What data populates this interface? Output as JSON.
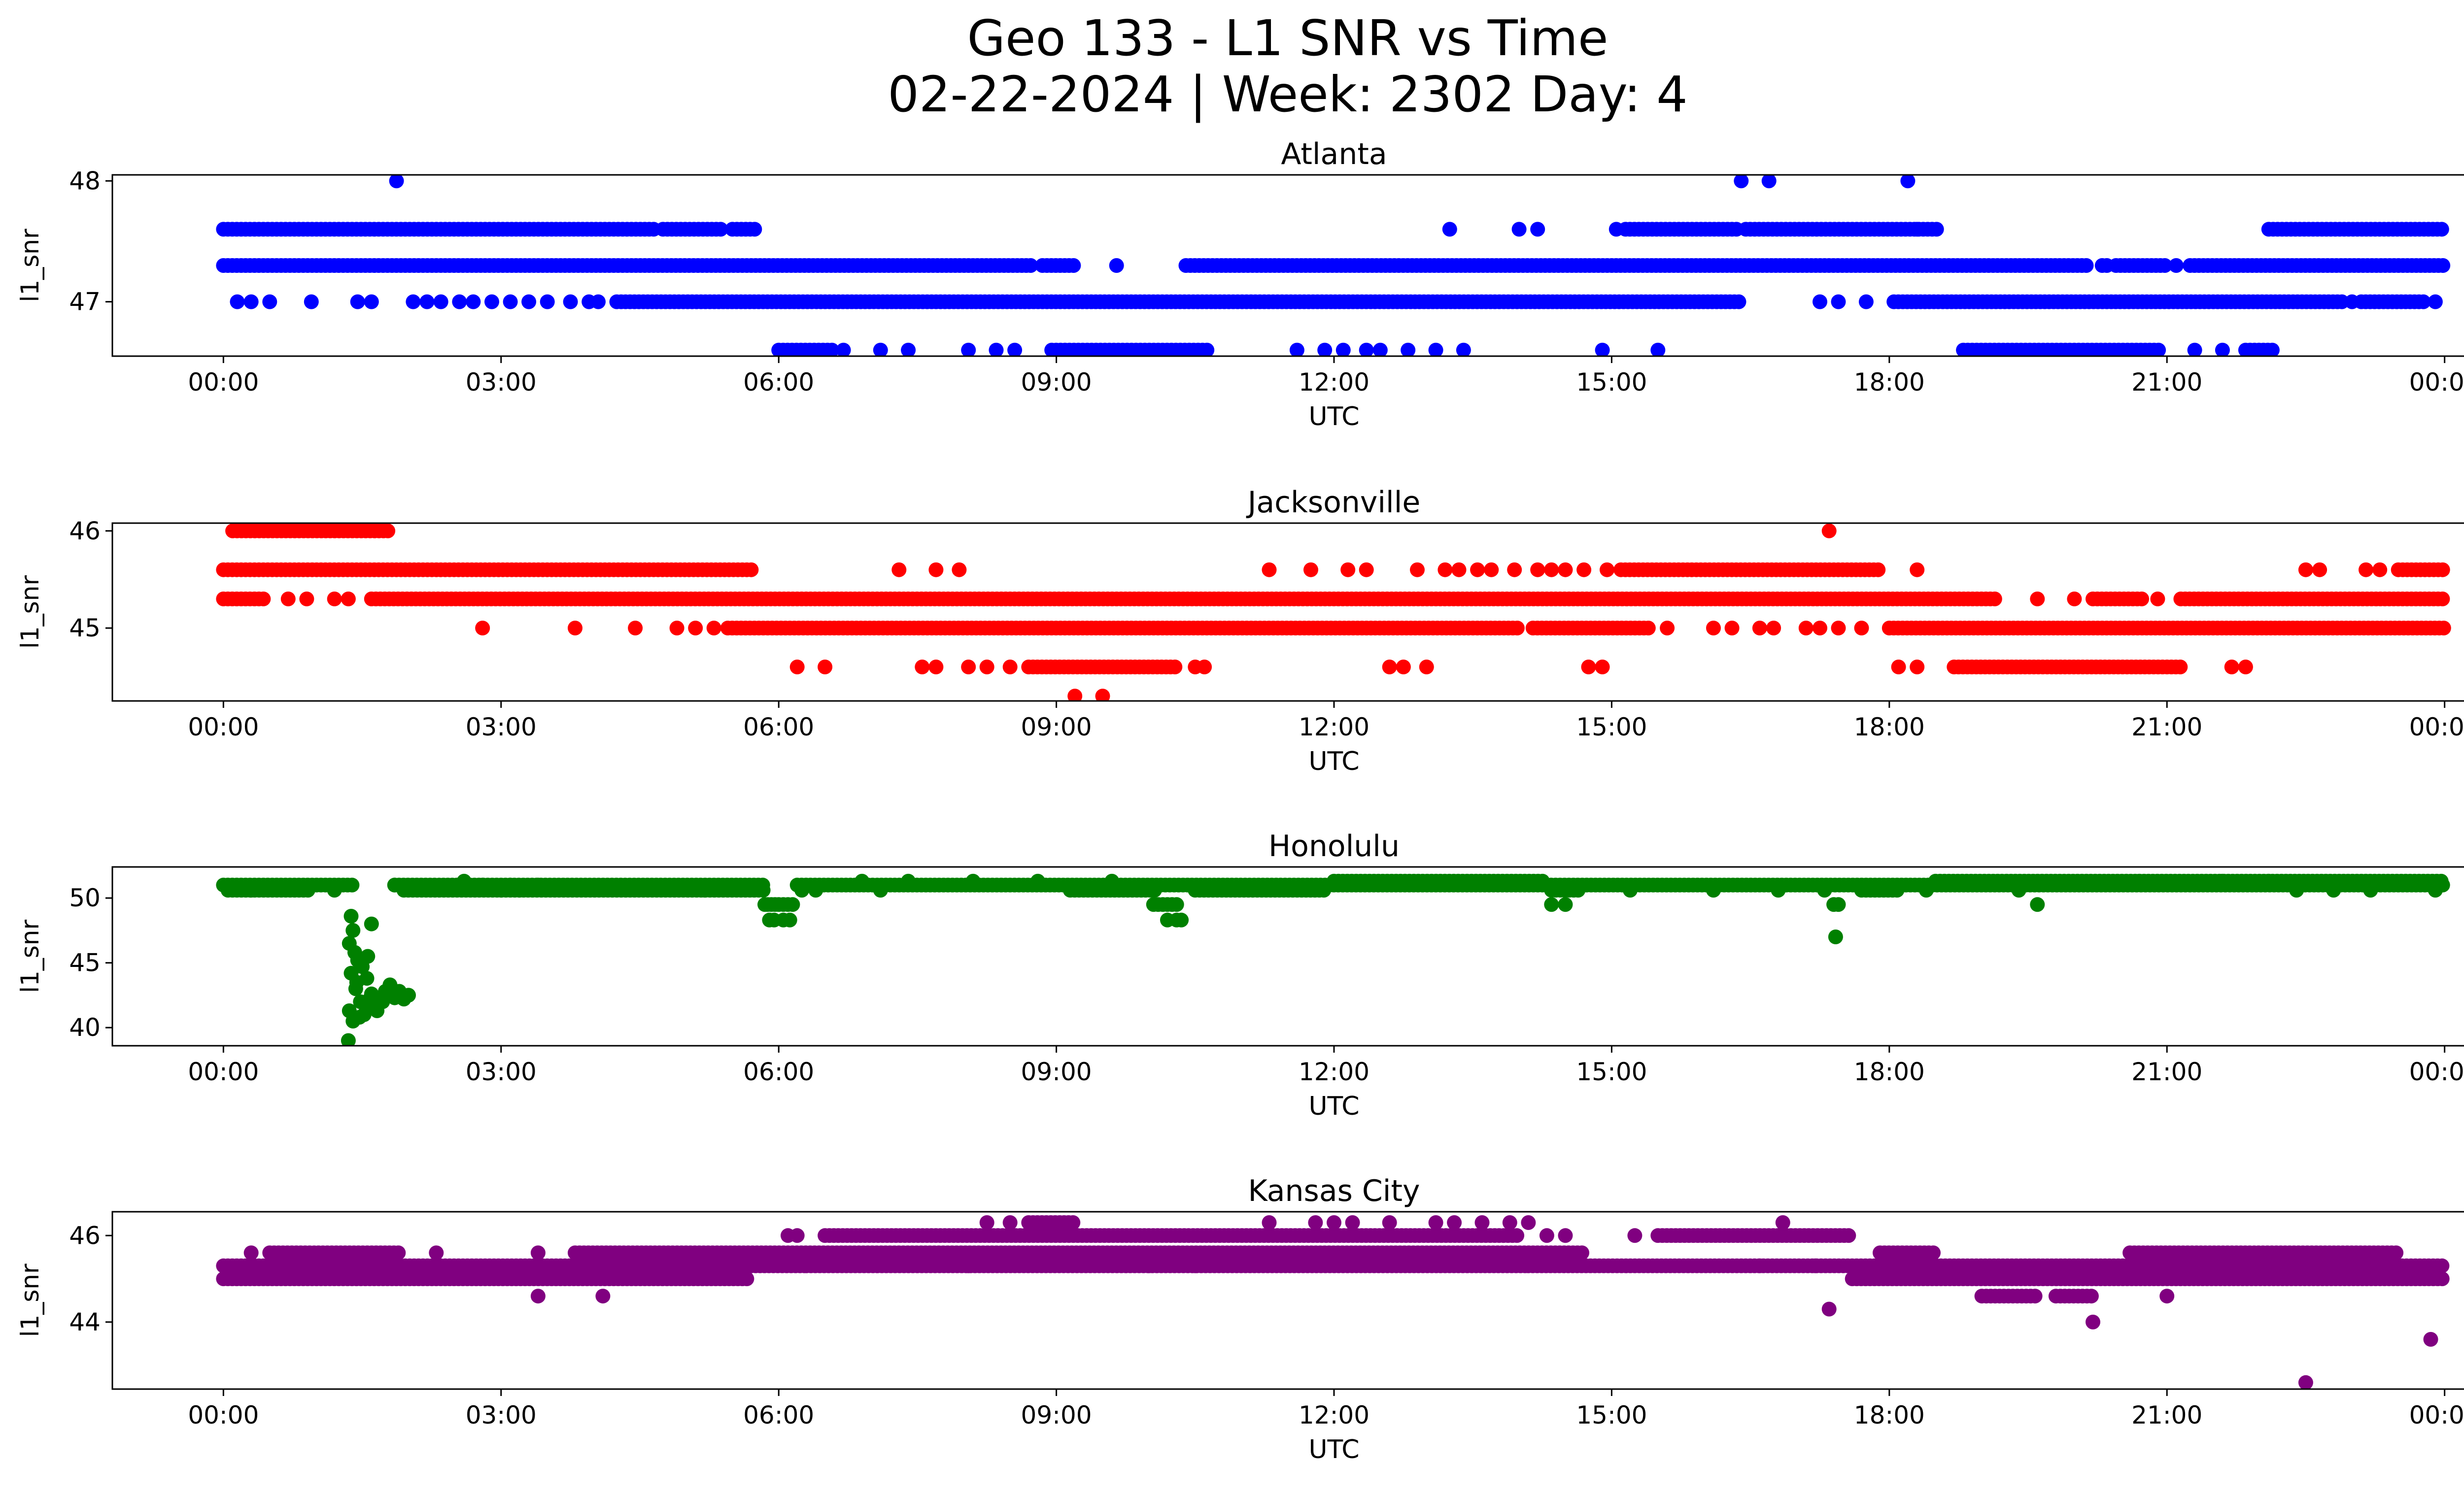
{
  "figure": {
    "title_line1": "Geo 133 - L1 SNR vs Time",
    "title_line2": "02-22-2024 | Week: 2302 Day: 4"
  },
  "chart_data": [
    {
      "type": "scatter",
      "title": "Atlanta",
      "xlabel": "UTC",
      "ylabel": "l1_snr",
      "color": "#0000ff",
      "x_ticks": [
        "00:00",
        "03:00",
        "06:00",
        "09:00",
        "12:00",
        "15:00",
        "18:00",
        "21:00",
        "00:00"
      ],
      "xlim_hours": [
        -1.2,
        25.2
      ],
      "y_ticks": [
        47,
        48
      ],
      "ylim": [
        46.55,
        48.05
      ],
      "series": [
        {
          "y": 47.6,
          "ranges": [
            [
              0.0,
              4.65
            ],
            [
              4.75,
              5.4
            ],
            [
              5.5,
              5.75
            ],
            [
              15.15,
              16.35
            ],
            [
              16.45,
              18.55
            ],
            [
              22.1,
              24.0
            ]
          ],
          "points": [
            13.25,
            14.0,
            14.2,
            15.05,
            18.3
          ]
        },
        {
          "y": 47.3,
          "ranges": [
            [
              0.0,
              8.75
            ],
            [
              8.85,
              9.2
            ],
            [
              10.4,
              20.15
            ],
            [
              20.45,
              21.0
            ],
            [
              21.25,
              24.0
            ]
          ],
          "points": [
            9.65,
            20.3,
            20.35,
            21.1
          ]
        },
        {
          "y": 47.0,
          "ranges": [
            [
              4.25,
              16.4
            ],
            [
              18.05,
              22.9
            ],
            [
              23.1,
              23.8
            ]
          ],
          "points": [
            0.15,
            0.3,
            0.5,
            0.95,
            1.45,
            1.6,
            2.05,
            2.2,
            2.35,
            2.55,
            2.7,
            2.9,
            3.1,
            3.3,
            3.5,
            3.75,
            3.95,
            4.05,
            17.25,
            17.45,
            17.75,
            23.0,
            23.9
          ]
        },
        {
          "y": 46.6,
          "ranges": [
            [
              6.0,
              6.6
            ],
            [
              8.95,
              10.65
            ],
            [
              18.8,
              20.95
            ],
            [
              21.85,
              22.15
            ]
          ],
          "points": [
            6.7,
            7.1,
            7.4,
            8.05,
            8.35,
            8.55,
            11.6,
            11.9,
            12.1,
            12.35,
            12.5,
            12.8,
            13.1,
            13.4,
            14.9,
            15.5,
            21.3,
            21.6
          ]
        },
        {
          "y": 48.0,
          "ranges": [],
          "points": [
            1.87,
            16.4,
            16.7,
            18.2
          ]
        }
      ]
    },
    {
      "type": "scatter",
      "title": "Jacksonville",
      "xlabel": "UTC",
      "ylabel": "l1_snr",
      "color": "#ff0000",
      "x_ticks": [
        "00:00",
        "03:00",
        "06:00",
        "09:00",
        "12:00",
        "15:00",
        "18:00",
        "21:00",
        "00:00"
      ],
      "xlim_hours": [
        -1.2,
        25.2
      ],
      "y_ticks": [
        45,
        46
      ],
      "ylim": [
        44.25,
        46.08
      ],
      "series": [
        {
          "y": 46.0,
          "ranges": [
            [
              0.1,
              1.8
            ]
          ],
          "points": [
            17.35
          ]
        },
        {
          "y": 45.6,
          "ranges": [
            [
              0.0,
              5.75
            ],
            [
              15.1,
              17.9
            ],
            [
              23.5,
              24.0
            ]
          ],
          "points": [
            7.3,
            7.7,
            7.95,
            11.3,
            11.75,
            12.15,
            12.35,
            12.9,
            13.2,
            13.35,
            13.55,
            13.7,
            13.95,
            14.2,
            14.35,
            14.5,
            14.7,
            14.95,
            18.3,
            22.5,
            22.65,
            23.15,
            23.3
          ]
        },
        {
          "y": 45.3,
          "ranges": [
            [
              0.0,
              0.45
            ],
            [
              1.6,
              19.15
            ],
            [
              20.2,
              20.75
            ],
            [
              21.15,
              24.0
            ]
          ],
          "points": [
            0.7,
            0.9,
            1.2,
            1.35,
            19.6,
            20.0,
            20.9
          ]
        },
        {
          "y": 45.0,
          "ranges": [
            [
              5.45,
              14.0
            ],
            [
              14.15,
              15.4
            ],
            [
              18.0,
              24.0
            ]
          ],
          "points": [
            2.8,
            3.8,
            4.45,
            4.9,
            5.1,
            5.3,
            15.6,
            16.1,
            16.3,
            16.6,
            16.75,
            17.1,
            17.25,
            17.45,
            17.7
          ]
        },
        {
          "y": 44.6,
          "ranges": [
            [
              8.7,
              10.3
            ],
            [
              18.7,
              21.15
            ]
          ],
          "points": [
            6.2,
            6.5,
            7.55,
            7.7,
            8.05,
            8.25,
            8.5,
            10.5,
            10.6,
            12.6,
            12.75,
            13.0,
            14.75,
            14.9,
            18.1,
            18.3,
            21.7,
            21.85
          ]
        },
        {
          "y": 44.3,
          "ranges": [],
          "points": [
            9.2,
            9.5
          ]
        }
      ]
    },
    {
      "type": "scatter",
      "title": "Honolulu",
      "xlabel": "UTC",
      "ylabel": "l1_snr",
      "color": "#008000",
      "x_ticks": [
        "00:00",
        "03:00",
        "06:00",
        "09:00",
        "12:00",
        "15:00",
        "18:00",
        "21:00",
        "00:00"
      ],
      "xlim_hours": [
        -1.2,
        25.2
      ],
      "y_ticks": [
        40,
        45,
        50
      ],
      "ylim": [
        38.6,
        52.4
      ],
      "series": [
        {
          "y": 51.0,
          "ranges": [
            [
              0.0,
              1.4
            ]
          ],
          "points": []
        },
        {
          "y": 50.6,
          "ranges": [
            [
              0.05,
              0.95
            ]
          ],
          "points": [
            0.3,
            1.2
          ]
        },
        {
          "y": 51.0,
          "ranges": [
            [
              1.85,
              5.85
            ],
            [
              6.2,
              24.0
            ]
          ],
          "points": [
            1.85,
            2.8,
            3.1,
            3.4
          ]
        },
        {
          "y": 50.6,
          "ranges": [
            [
              1.95,
              5.85
            ],
            [
              9.15,
              10.1
            ],
            [
              10.5,
              11.9
            ],
            [
              14.35,
              14.65
            ],
            [
              17.7,
              18.1
            ]
          ],
          "points": [
            3.0,
            3.2,
            5.2,
            6.25,
            6.4,
            7.1,
            15.2,
            16.1,
            16.8,
            17.3,
            18.4,
            19.4,
            22.4,
            22.8,
            23.2,
            23.9
          ]
        },
        {
          "y": 51.3,
          "ranges": [
            [
              12.0,
              14.3
            ],
            [
              18.5,
              24.0
            ]
          ],
          "points": [
            2.6,
            6.9,
            7.4,
            8.1,
            8.8,
            9.6,
            20.7,
            21.6,
            22.1
          ]
        },
        {
          "y": 49.5,
          "ranges": [],
          "points": [
            5.85,
            5.88,
            5.92,
            5.96,
            6.0,
            6.05,
            6.1,
            6.15,
            10.05,
            10.1,
            10.15,
            10.2,
            10.25,
            10.3,
            14.35,
            14.5,
            17.4,
            17.45,
            19.6
          ]
        },
        {
          "y": 48.3,
          "ranges": [],
          "points": [
            5.9,
            5.95,
            6.05,
            6.12,
            10.2,
            10.3,
            10.35
          ]
        },
        {
          "y": 47.0,
          "ranges": [],
          "points": [
            17.42
          ]
        },
        {
          "y": 48.0,
          "ranges": [],
          "points": [
            1.6
          ]
        }
      ],
      "scatter_points": [
        [
          1.38,
          48.6
        ],
        [
          1.4,
          47.5
        ],
        [
          1.36,
          46.5
        ],
        [
          1.42,
          45.8
        ],
        [
          1.45,
          45.2
        ],
        [
          1.5,
          44.7
        ],
        [
          1.38,
          44.2
        ],
        [
          1.55,
          43.8
        ],
        [
          1.43,
          43.0
        ],
        [
          1.6,
          42.6
        ],
        [
          1.48,
          42.0
        ],
        [
          1.36,
          41.3
        ],
        [
          1.52,
          41.0
        ],
        [
          1.62,
          41.6
        ],
        [
          1.4,
          40.5
        ],
        [
          1.35,
          39.0
        ],
        [
          1.7,
          42.2
        ],
        [
          1.75,
          42.8
        ],
        [
          1.8,
          43.3
        ],
        [
          1.85,
          42.3
        ],
        [
          1.9,
          42.8
        ],
        [
          1.95,
          42.2
        ],
        [
          2.0,
          42.5
        ],
        [
          1.58,
          42.2
        ],
        [
          1.66,
          41.3
        ],
        [
          1.72,
          42.0
        ],
        [
          1.47,
          40.8
        ],
        [
          1.53,
          41.9
        ],
        [
          1.44,
          43.5
        ],
        [
          1.49,
          44.8
        ],
        [
          1.56,
          45.5
        ]
      ]
    },
    {
      "type": "scatter",
      "title": "Kansas City",
      "xlabel": "UTC",
      "ylabel": "l1_snr",
      "color": "#800080",
      "x_ticks": [
        "00:00",
        "03:00",
        "06:00",
        "09:00",
        "12:00",
        "15:00",
        "18:00",
        "21:00",
        "00:00"
      ],
      "xlim_hours": [
        -1.2,
        25.2
      ],
      "y_ticks": [
        44,
        46
      ],
      "ylim": [
        42.45,
        46.55
      ],
      "series": [
        {
          "y": 45.0,
          "ranges": [
            [
              0.0,
              5.7
            ],
            [
              17.6,
              24.0
            ]
          ],
          "points": []
        },
        {
          "y": 45.3,
          "ranges": [
            [
              0.0,
              6.3
            ],
            [
              6.3,
              14.1
            ],
            [
              14.1,
              24.0
            ]
          ],
          "points": []
        },
        {
          "y": 45.6,
          "ranges": [
            [
              0.5,
              1.9
            ],
            [
              3.8,
              14.7
            ],
            [
              17.9,
              18.5
            ],
            [
              20.6,
              23.5
            ]
          ],
          "points": [
            0.3,
            2.3,
            3.4
          ]
        },
        {
          "y": 46.0,
          "ranges": [
            [
              6.5,
              14.0
            ],
            [
              15.5,
              17.6
            ]
          ],
          "points": [
            6.1,
            6.2,
            15.25,
            14.3,
            14.5
          ]
        },
        {
          "y": 46.3,
          "ranges": [
            [
              8.7,
              9.2
            ]
          ],
          "points": [
            8.25,
            8.5,
            11.3,
            11.8,
            12.0,
            12.2,
            12.6,
            13.1,
            13.3,
            13.6,
            13.9,
            14.1,
            16.85
          ]
        },
        {
          "y": 45.3,
          "ranges": [],
          "points": [
            8.05,
            10.0,
            10.5,
            16.6,
            17.2
          ]
        },
        {
          "y": 44.6,
          "ranges": [
            [
              19.0,
              19.6
            ],
            [
              19.8,
              20.2
            ]
          ],
          "points": [
            3.4,
            4.1,
            21.0
          ]
        },
        {
          "y": 44.3,
          "ranges": [],
          "points": [
            17.35
          ]
        },
        {
          "y": 44.0,
          "ranges": [],
          "points": [
            20.2
          ]
        },
        {
          "y": 43.6,
          "ranges": [],
          "points": [
            23.85
          ]
        },
        {
          "y": 42.6,
          "ranges": [],
          "points": [
            22.5
          ]
        }
      ]
    }
  ]
}
